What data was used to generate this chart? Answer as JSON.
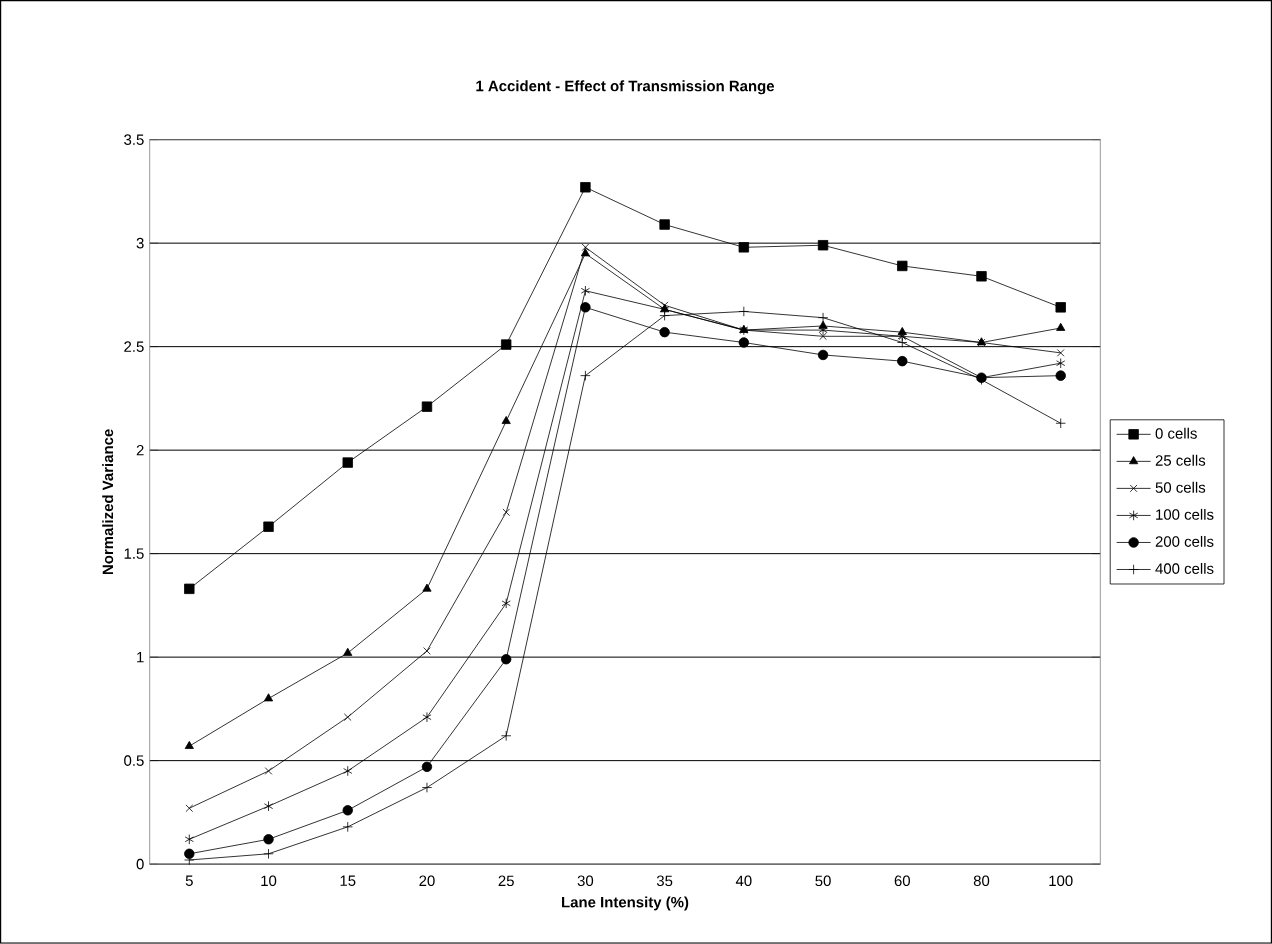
{
  "chart_data": {
    "type": "line",
    "title": "1 Accident - Effect of Transmission Range",
    "xlabel": "Lane Intensity (%)",
    "ylabel": "Normalized Variance",
    "categories": [
      "5",
      "10",
      "15",
      "20",
      "25",
      "30",
      "35",
      "40",
      "50",
      "60",
      "80",
      "100"
    ],
    "ylim": [
      0,
      3.5
    ],
    "yticks": [
      0,
      0.5,
      1,
      1.5,
      2,
      2.5,
      3,
      3.5
    ],
    "grid": "y",
    "legend": "right",
    "line_style": "solid",
    "series": [
      {
        "name": "0 cells",
        "color": "#000000",
        "marker": "square",
        "values": [
          1.33,
          1.63,
          1.94,
          2.21,
          2.51,
          3.27,
          3.09,
          2.98,
          2.99,
          2.89,
          2.84,
          2.69
        ]
      },
      {
        "name": "25 cells",
        "color": "#000000",
        "marker": "triangle",
        "values": [
          0.57,
          0.8,
          1.02,
          1.33,
          2.14,
          2.95,
          2.68,
          2.58,
          2.6,
          2.57,
          2.52,
          2.59
        ]
      },
      {
        "name": "50 cells",
        "color": "#000000",
        "marker": "cross",
        "values": [
          0.27,
          0.45,
          0.71,
          1.03,
          1.7,
          2.98,
          2.7,
          2.58,
          2.55,
          2.55,
          2.52,
          2.47
        ]
      },
      {
        "name": "100 cells",
        "color": "#000000",
        "marker": "cross",
        "values": [
          0.12,
          0.28,
          0.45,
          0.71,
          1.26,
          2.77,
          2.68,
          2.58,
          2.58,
          2.55,
          2.35,
          2.42
        ]
      },
      {
        "name": "200 cells",
        "color": "#000000",
        "marker": "circle",
        "values": [
          0.05,
          0.12,
          0.26,
          0.47,
          0.99,
          2.69,
          2.57,
          2.52,
          2.46,
          2.43,
          2.35,
          2.36
        ]
      },
      {
        "name": "400 cells",
        "color": "#000000",
        "marker": "plus",
        "values": [
          0.02,
          0.05,
          0.18,
          0.37,
          0.62,
          2.36,
          2.65,
          2.67,
          2.64,
          2.52,
          2.34,
          2.13
        ]
      }
    ]
  }
}
